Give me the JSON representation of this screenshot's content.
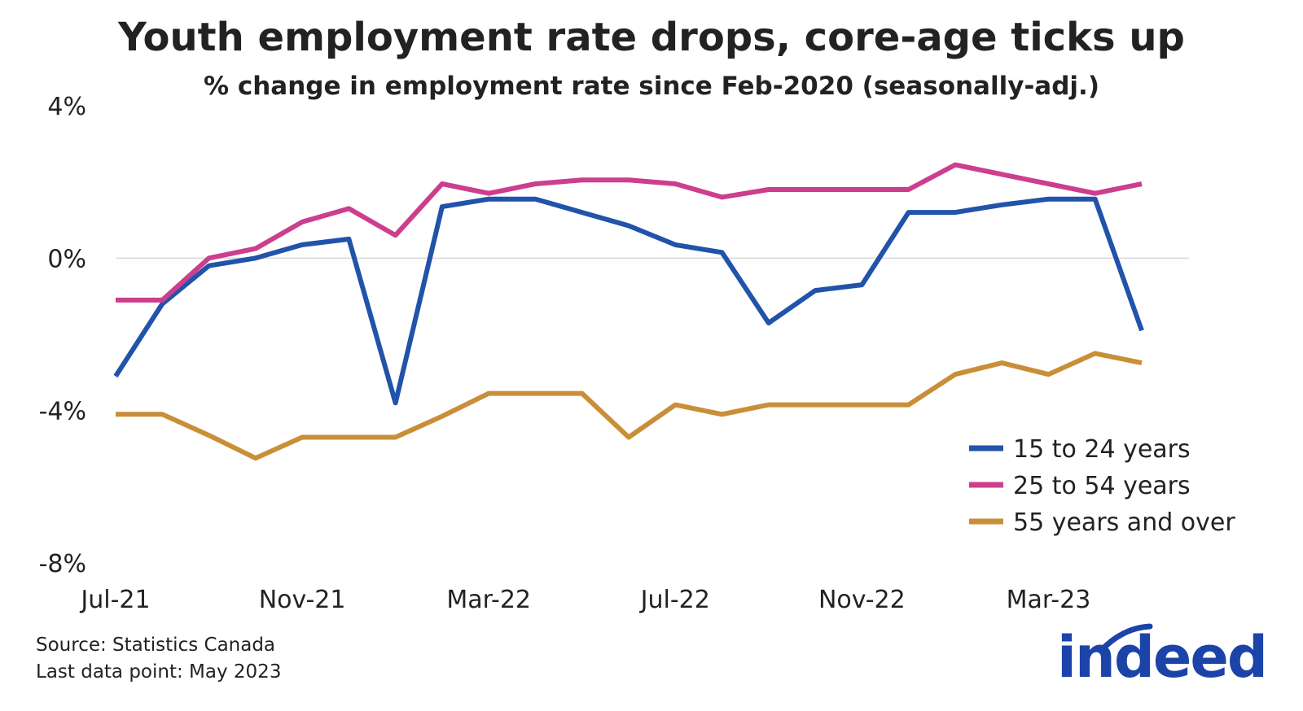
{
  "chart_data": {
    "type": "line",
    "title": "Youth employment rate drops, core-age ticks up",
    "subtitle": "% change in employment rate since Feb-2020 (seasonally-adj.)",
    "xlabel": "",
    "ylabel": "",
    "ylim": [
      -8,
      4
    ],
    "yticks": [
      4,
      0,
      -4,
      -8
    ],
    "ytick_labels": [
      "4%",
      "0%",
      "-4%",
      "-8%"
    ],
    "x": [
      "Jul-21",
      "Aug-21",
      "Sep-21",
      "Oct-21",
      "Nov-21",
      "Dec-21",
      "Jan-22",
      "Feb-22",
      "Mar-22",
      "Apr-22",
      "May-22",
      "Jun-22",
      "Jul-22",
      "Aug-22",
      "Sep-22",
      "Oct-22",
      "Nov-22",
      "Dec-22",
      "Jan-23",
      "Feb-23",
      "Mar-23",
      "Apr-23",
      "May-23"
    ],
    "xtick_indices": [
      0,
      4,
      8,
      12,
      16,
      20
    ],
    "xtick_labels": [
      "Jul-21",
      "Nov-21",
      "Mar-22",
      "Jul-22",
      "Nov-22",
      "Mar-23"
    ],
    "zero_line": true,
    "legend_position": "bottom-right",
    "series": [
      {
        "name": "15 to 24 years",
        "color": "#2153aa",
        "values": [
          -3.1,
          -1.2,
          -0.2,
          0.0,
          0.35,
          0.5,
          -3.8,
          1.35,
          1.55,
          1.55,
          1.2,
          0.85,
          0.35,
          0.15,
          -1.7,
          -0.85,
          -0.7,
          1.2,
          1.2,
          1.4,
          1.55,
          1.55,
          -1.9
        ]
      },
      {
        "name": "25 to 54 years",
        "color": "#cc3e8e",
        "values": [
          -1.1,
          -1.1,
          0.0,
          0.25,
          0.95,
          1.3,
          0.6,
          1.95,
          1.7,
          1.95,
          2.05,
          2.05,
          1.95,
          1.6,
          1.8,
          1.8,
          1.8,
          1.8,
          2.45,
          2.2,
          1.95,
          1.7,
          1.95
        ]
      },
      {
        "name": "55 years and over",
        "color": "#c98f38",
        "values": [
          -4.1,
          -4.1,
          -4.65,
          -5.25,
          -4.7,
          -4.7,
          -4.7,
          -4.15,
          -3.55,
          -3.55,
          -3.55,
          -4.7,
          -3.85,
          -4.1,
          -3.85,
          -3.85,
          -3.85,
          -3.85,
          -3.05,
          -2.75,
          -3.05,
          -2.5,
          -2.75
        ]
      }
    ]
  },
  "footer": {
    "source": "Source: Statistics Canada",
    "last_data_point": "Last data point: May 2023"
  },
  "logo": {
    "text": "indeed",
    "color": "#1c44a8"
  },
  "colors": {
    "text": "#222222",
    "zero_line": "#d9d9d9",
    "background": "#ffffff"
  }
}
